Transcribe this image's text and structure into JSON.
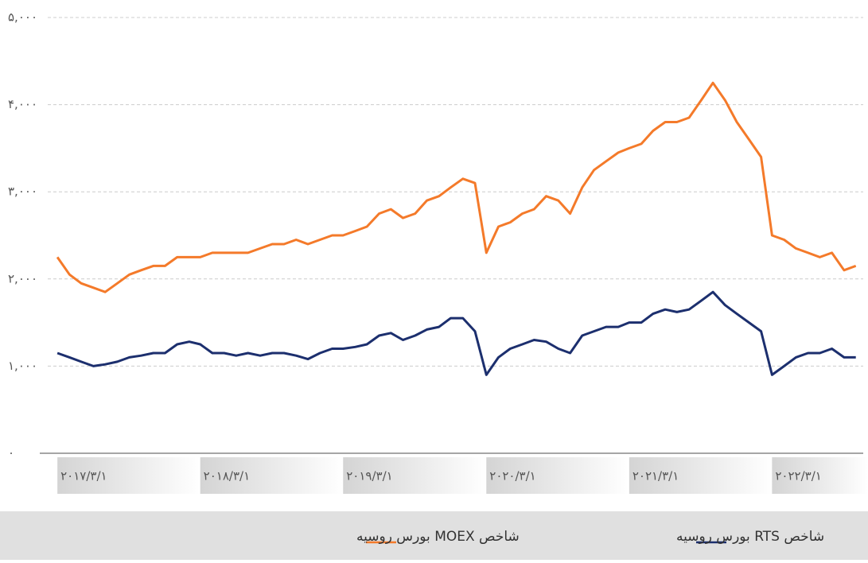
{
  "chart_data": {
    "type": "line",
    "x": [
      "2017-03-01",
      "2017-04-01",
      "2017-05-01",
      "2017-06-01",
      "2017-07-01",
      "2017-08-01",
      "2017-09-01",
      "2017-10-01",
      "2017-11-01",
      "2017-12-01",
      "2018-01-01",
      "2018-02-01",
      "2018-03-01",
      "2018-04-01",
      "2018-05-01",
      "2018-06-01",
      "2018-07-01",
      "2018-08-01",
      "2018-09-01",
      "2018-10-01",
      "2018-11-01",
      "2018-12-01",
      "2019-01-01",
      "2019-02-01",
      "2019-03-01",
      "2019-04-01",
      "2019-05-01",
      "2019-06-01",
      "2019-07-01",
      "2019-08-01",
      "2019-09-01",
      "2019-10-01",
      "2019-11-01",
      "2019-12-01",
      "2020-01-01",
      "2020-02-01",
      "2020-03-01",
      "2020-04-01",
      "2020-05-01",
      "2020-06-01",
      "2020-07-01",
      "2020-08-01",
      "2020-09-01",
      "2020-10-01",
      "2020-11-01",
      "2020-12-01",
      "2021-01-01",
      "2021-02-01",
      "2021-03-01",
      "2021-04-01",
      "2021-05-01",
      "2021-06-01",
      "2021-07-01",
      "2021-08-01",
      "2021-09-01",
      "2021-10-01",
      "2021-11-01",
      "2021-12-01",
      "2022-01-01",
      "2022-02-01",
      "2022-03-01",
      "2022-04-01",
      "2022-05-01",
      "2022-06-01",
      "2022-07-01",
      "2022-08-01",
      "2022-09-01",
      "2022-10-01"
    ],
    "series": [
      {
        "name": "شاخص MOEX بورس روسیه",
        "color": "#f47a2a",
        "values": [
          2250,
          2050,
          1950,
          1900,
          1850,
          1950,
          2050,
          2100,
          2150,
          2150,
          2250,
          2250,
          2250,
          2300,
          2300,
          2300,
          2300,
          2350,
          2400,
          2400,
          2450,
          2400,
          2450,
          2500,
          2500,
          2550,
          2600,
          2750,
          2800,
          2700,
          2750,
          2900,
          2950,
          3050,
          3150,
          3100,
          2300,
          2600,
          2650,
          2750,
          2800,
          2950,
          2900,
          2750,
          3050,
          3250,
          3350,
          3450,
          3500,
          3550,
          3700,
          3800,
          3800,
          3850,
          4050,
          4250,
          4050,
          3800,
          3600,
          3400,
          2500,
          2450,
          2350,
          2300,
          2250,
          2300,
          2100,
          2150
        ]
      },
      {
        "name": "شاخص RTS بورس روسیه",
        "color": "#1c2f6e",
        "values": [
          1150,
          1100,
          1050,
          1000,
          1020,
          1050,
          1100,
          1120,
          1150,
          1150,
          1250,
          1280,
          1250,
          1150,
          1150,
          1120,
          1150,
          1120,
          1150,
          1150,
          1120,
          1080,
          1150,
          1200,
          1200,
          1220,
          1250,
          1350,
          1380,
          1300,
          1350,
          1420,
          1450,
          1550,
          1550,
          1400,
          900,
          1100,
          1200,
          1250,
          1300,
          1280,
          1200,
          1150,
          1350,
          1400,
          1450,
          1450,
          1500,
          1500,
          1600,
          1650,
          1620,
          1650,
          1750,
          1850,
          1700,
          1600,
          1500,
          1400,
          900,
          1000,
          1100,
          1150,
          1150,
          1200,
          1100,
          1100
        ]
      }
    ],
    "xlim": [
      "2017-01-15",
      "2022-10-20"
    ],
    "xticks": [
      {
        "value": "2017-03-01",
        "label": "۲۰۱۷/۳/۱"
      },
      {
        "value": "2018-03-01",
        "label": "۲۰۱۸/۳/۱"
      },
      {
        "value": "2019-03-01",
        "label": "۲۰۱۹/۳/۱"
      },
      {
        "value": "2020-03-01",
        "label": "۲۰۲۰/۳/۱"
      },
      {
        "value": "2021-03-01",
        "label": "۲۰۲۱/۳/۱"
      },
      {
        "value": "2022-03-01",
        "label": "۲۰۲۲/۳/۱"
      }
    ],
    "ylim": [
      0,
      5000
    ],
    "yticks": [
      {
        "value": 0,
        "label": "۰"
      },
      {
        "value": 1000,
        "label": "۱,۰۰۰"
      },
      {
        "value": 2000,
        "label": "۲,۰۰۰"
      },
      {
        "value": 3000,
        "label": "۳,۰۰۰"
      },
      {
        "value": 4000,
        "label": "۴,۰۰۰"
      },
      {
        "value": 5000,
        "label": "۵,۰۰۰"
      }
    ],
    "grid": true
  }
}
